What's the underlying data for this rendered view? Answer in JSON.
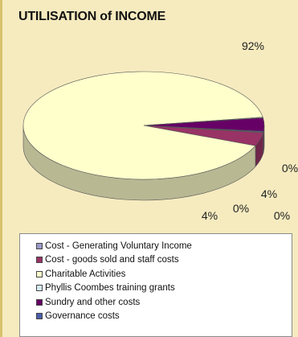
{
  "chart_data": {
    "type": "pie",
    "title": "UTILISATION of INCOME",
    "slices": [
      {
        "name": "Cost - Generating Voluntary Income",
        "value": 0,
        "label": "0%",
        "color": "#9b9ac8"
      },
      {
        "name": "Cost - goods sold and staff costs",
        "value": 4,
        "label": "4%",
        "color": "#993366"
      },
      {
        "name": "Charitable Activities",
        "value": 92,
        "label": "92%",
        "color": "#ffffcc"
      },
      {
        "name": "Phyllis Coombes training grants",
        "value": 0,
        "label": "0%",
        "color": "#d6ecf2"
      },
      {
        "name": "Sundry and other costs",
        "value": 4,
        "label": "4%",
        "color": "#660066"
      },
      {
        "name": "Governance costs",
        "value": 0,
        "label": "0%",
        "color": "#4a5ea8"
      }
    ]
  }
}
